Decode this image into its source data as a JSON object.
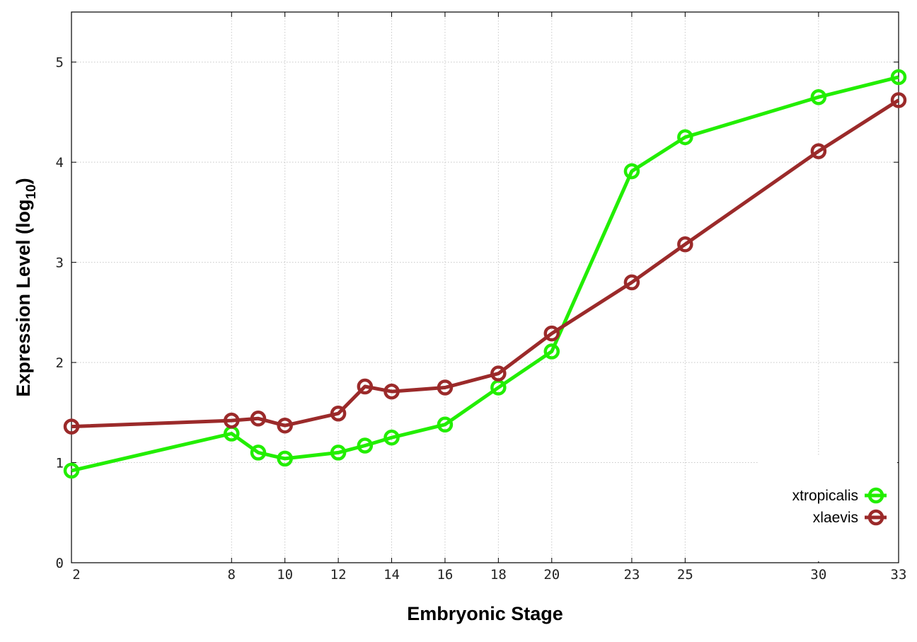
{
  "chart_data": {
    "type": "line",
    "xlabel": "Embryonic Stage",
    "ylabel_main": "Expression Level (log",
    "ylabel_sub": "10",
    "ylabel_close": ")",
    "xlim": [
      2,
      33
    ],
    "ylim": [
      0,
      5.5
    ],
    "x_ticks": [
      2,
      8,
      10,
      12,
      14,
      16,
      18,
      20,
      23,
      25,
      30,
      33
    ],
    "y_ticks": [
      0,
      1,
      2,
      3,
      4,
      5
    ],
    "grid": true,
    "legend_position": "bottom-right",
    "series": [
      {
        "name": "xtropicalis",
        "color": "#22ee00",
        "x": [
          2,
          8,
          9,
          10,
          12,
          13,
          14,
          16,
          18,
          20,
          23,
          25,
          30,
          33
        ],
        "y": [
          0.92,
          1.29,
          1.1,
          1.04,
          1.1,
          1.17,
          1.25,
          1.38,
          1.75,
          2.11,
          3.91,
          4.25,
          4.65,
          4.85
        ]
      },
      {
        "name": "xlaevis",
        "color": "#9b2a2a",
        "x": [
          2,
          8,
          9,
          10,
          12,
          13,
          14,
          16,
          18,
          20,
          23,
          25,
          30,
          33
        ],
        "y": [
          1.36,
          1.42,
          1.44,
          1.37,
          1.49,
          1.76,
          1.71,
          1.75,
          1.89,
          2.29,
          2.8,
          3.18,
          4.11,
          4.62
        ]
      }
    ]
  }
}
